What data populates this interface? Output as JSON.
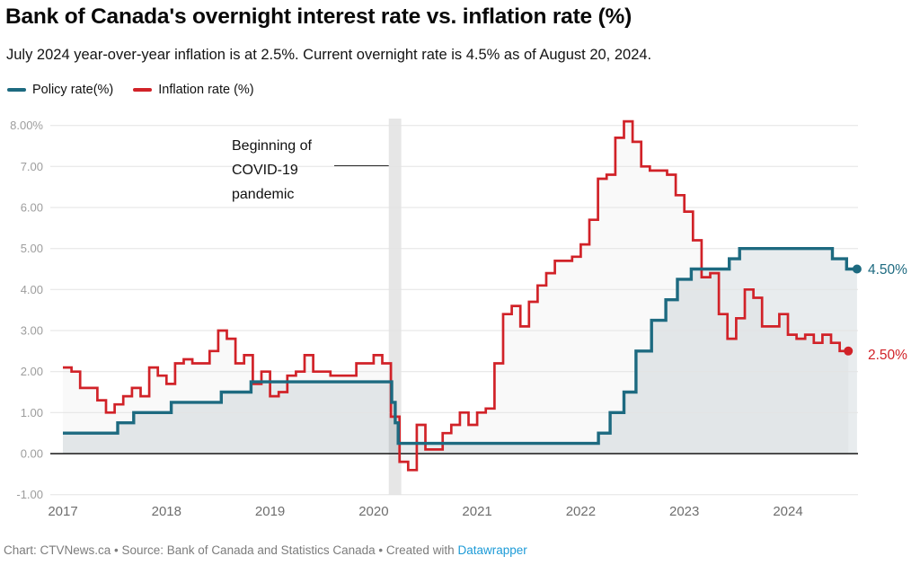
{
  "header": {
    "title": "Bank of Canada's overnight interest rate vs. inflation rate (%)",
    "subtitle": "July 2024 year-over-year inflation is at 2.5%. Current overnight rate is 4.5% as of August 20, 2024."
  },
  "annotation": {
    "text": "Beginning of\nCOVID-19\npandemic",
    "band_color": "#e6e6e6"
  },
  "chart_data": {
    "type": "line",
    "interpolation": "step-after",
    "x_unit": "month",
    "x_start": "2017-01",
    "ylim": [
      -1,
      8
    ],
    "grid": true,
    "y_ticks": [
      {
        "value": 8,
        "label": "8.00%"
      },
      {
        "value": 7,
        "label": "7.00"
      },
      {
        "value": 6,
        "label": "6.00"
      },
      {
        "value": 5,
        "label": "5.00"
      },
      {
        "value": 4,
        "label": "4.00"
      },
      {
        "value": 3,
        "label": "3.00"
      },
      {
        "value": 2,
        "label": "2.00"
      },
      {
        "value": 1,
        "label": "1.00"
      },
      {
        "value": 0,
        "label": "0.00"
      },
      {
        "value": -1,
        "label": "-1.00"
      }
    ],
    "x_ticks": [
      {
        "month": 0,
        "label": "2017"
      },
      {
        "month": 12,
        "label": "2018"
      },
      {
        "month": 24,
        "label": "2019"
      },
      {
        "month": 36,
        "label": "2020"
      },
      {
        "month": 48,
        "label": "2021"
      },
      {
        "month": 60,
        "label": "2022"
      },
      {
        "month": 72,
        "label": "2023"
      },
      {
        "month": 84,
        "label": "2024"
      }
    ],
    "covid_band": {
      "from_month": 37.75,
      "to_month": 39.2
    },
    "series": [
      {
        "name": "Policy rate(%)",
        "color": "#1d6a80",
        "fill": "rgba(30,70,85,0.10)",
        "line_width": 3.4,
        "end_label": "4.50%",
        "end_month": 92,
        "points": [
          [
            0,
            0.5
          ],
          [
            6.35,
            0.75
          ],
          [
            8.2,
            1.0
          ],
          [
            12.55,
            1.25
          ],
          [
            18.35,
            1.5
          ],
          [
            21.8,
            1.75
          ],
          [
            38.1,
            1.25
          ],
          [
            38.5,
            0.75
          ],
          [
            38.85,
            0.25
          ],
          [
            62.05,
            0.5
          ],
          [
            63.4,
            1.0
          ],
          [
            65.0,
            1.5
          ],
          [
            66.4,
            2.5
          ],
          [
            68.2,
            3.25
          ],
          [
            69.85,
            3.75
          ],
          [
            71.2,
            4.25
          ],
          [
            72.8,
            4.5
          ],
          [
            77.2,
            4.75
          ],
          [
            78.4,
            5.0
          ],
          [
            89.15,
            4.75
          ],
          [
            90.8,
            4.5
          ]
        ]
      },
      {
        "name": "Inflation rate (%)",
        "color": "#d12228",
        "fill": "rgba(0,0,0,0.025)",
        "line_width": 2.7,
        "end_label": "2.50%",
        "end_month": 91,
        "monthly": [
          2.1,
          2.0,
          1.6,
          1.6,
          1.3,
          1.0,
          1.2,
          1.4,
          1.6,
          1.4,
          2.1,
          1.9,
          1.7,
          2.2,
          2.3,
          2.2,
          2.2,
          2.5,
          3.0,
          2.8,
          2.2,
          2.4,
          1.7,
          2.0,
          1.4,
          1.5,
          1.9,
          2.0,
          2.4,
          2.0,
          2.0,
          1.9,
          1.9,
          1.9,
          2.2,
          2.2,
          2.4,
          2.2,
          0.9,
          -0.2,
          -0.4,
          0.7,
          0.1,
          0.1,
          0.5,
          0.7,
          1.0,
          0.7,
          1.0,
          1.1,
          2.2,
          3.4,
          3.6,
          3.1,
          3.7,
          4.1,
          4.4,
          4.7,
          4.7,
          4.8,
          5.1,
          5.7,
          6.7,
          6.8,
          7.7,
          8.1,
          7.6,
          7.0,
          6.9,
          6.9,
          6.8,
          6.3,
          5.9,
          5.2,
          4.3,
          4.4,
          3.4,
          2.8,
          3.3,
          4.0,
          3.8,
          3.1,
          3.1,
          3.4,
          2.9,
          2.8,
          2.9,
          2.7,
          2.9,
          2.7,
          2.5
        ]
      }
    ]
  },
  "footer": {
    "text": "Chart: CTVNews.ca • Source: Bank of Canada and Statistics Canada • Created with ",
    "link_label": "Datawrapper"
  }
}
